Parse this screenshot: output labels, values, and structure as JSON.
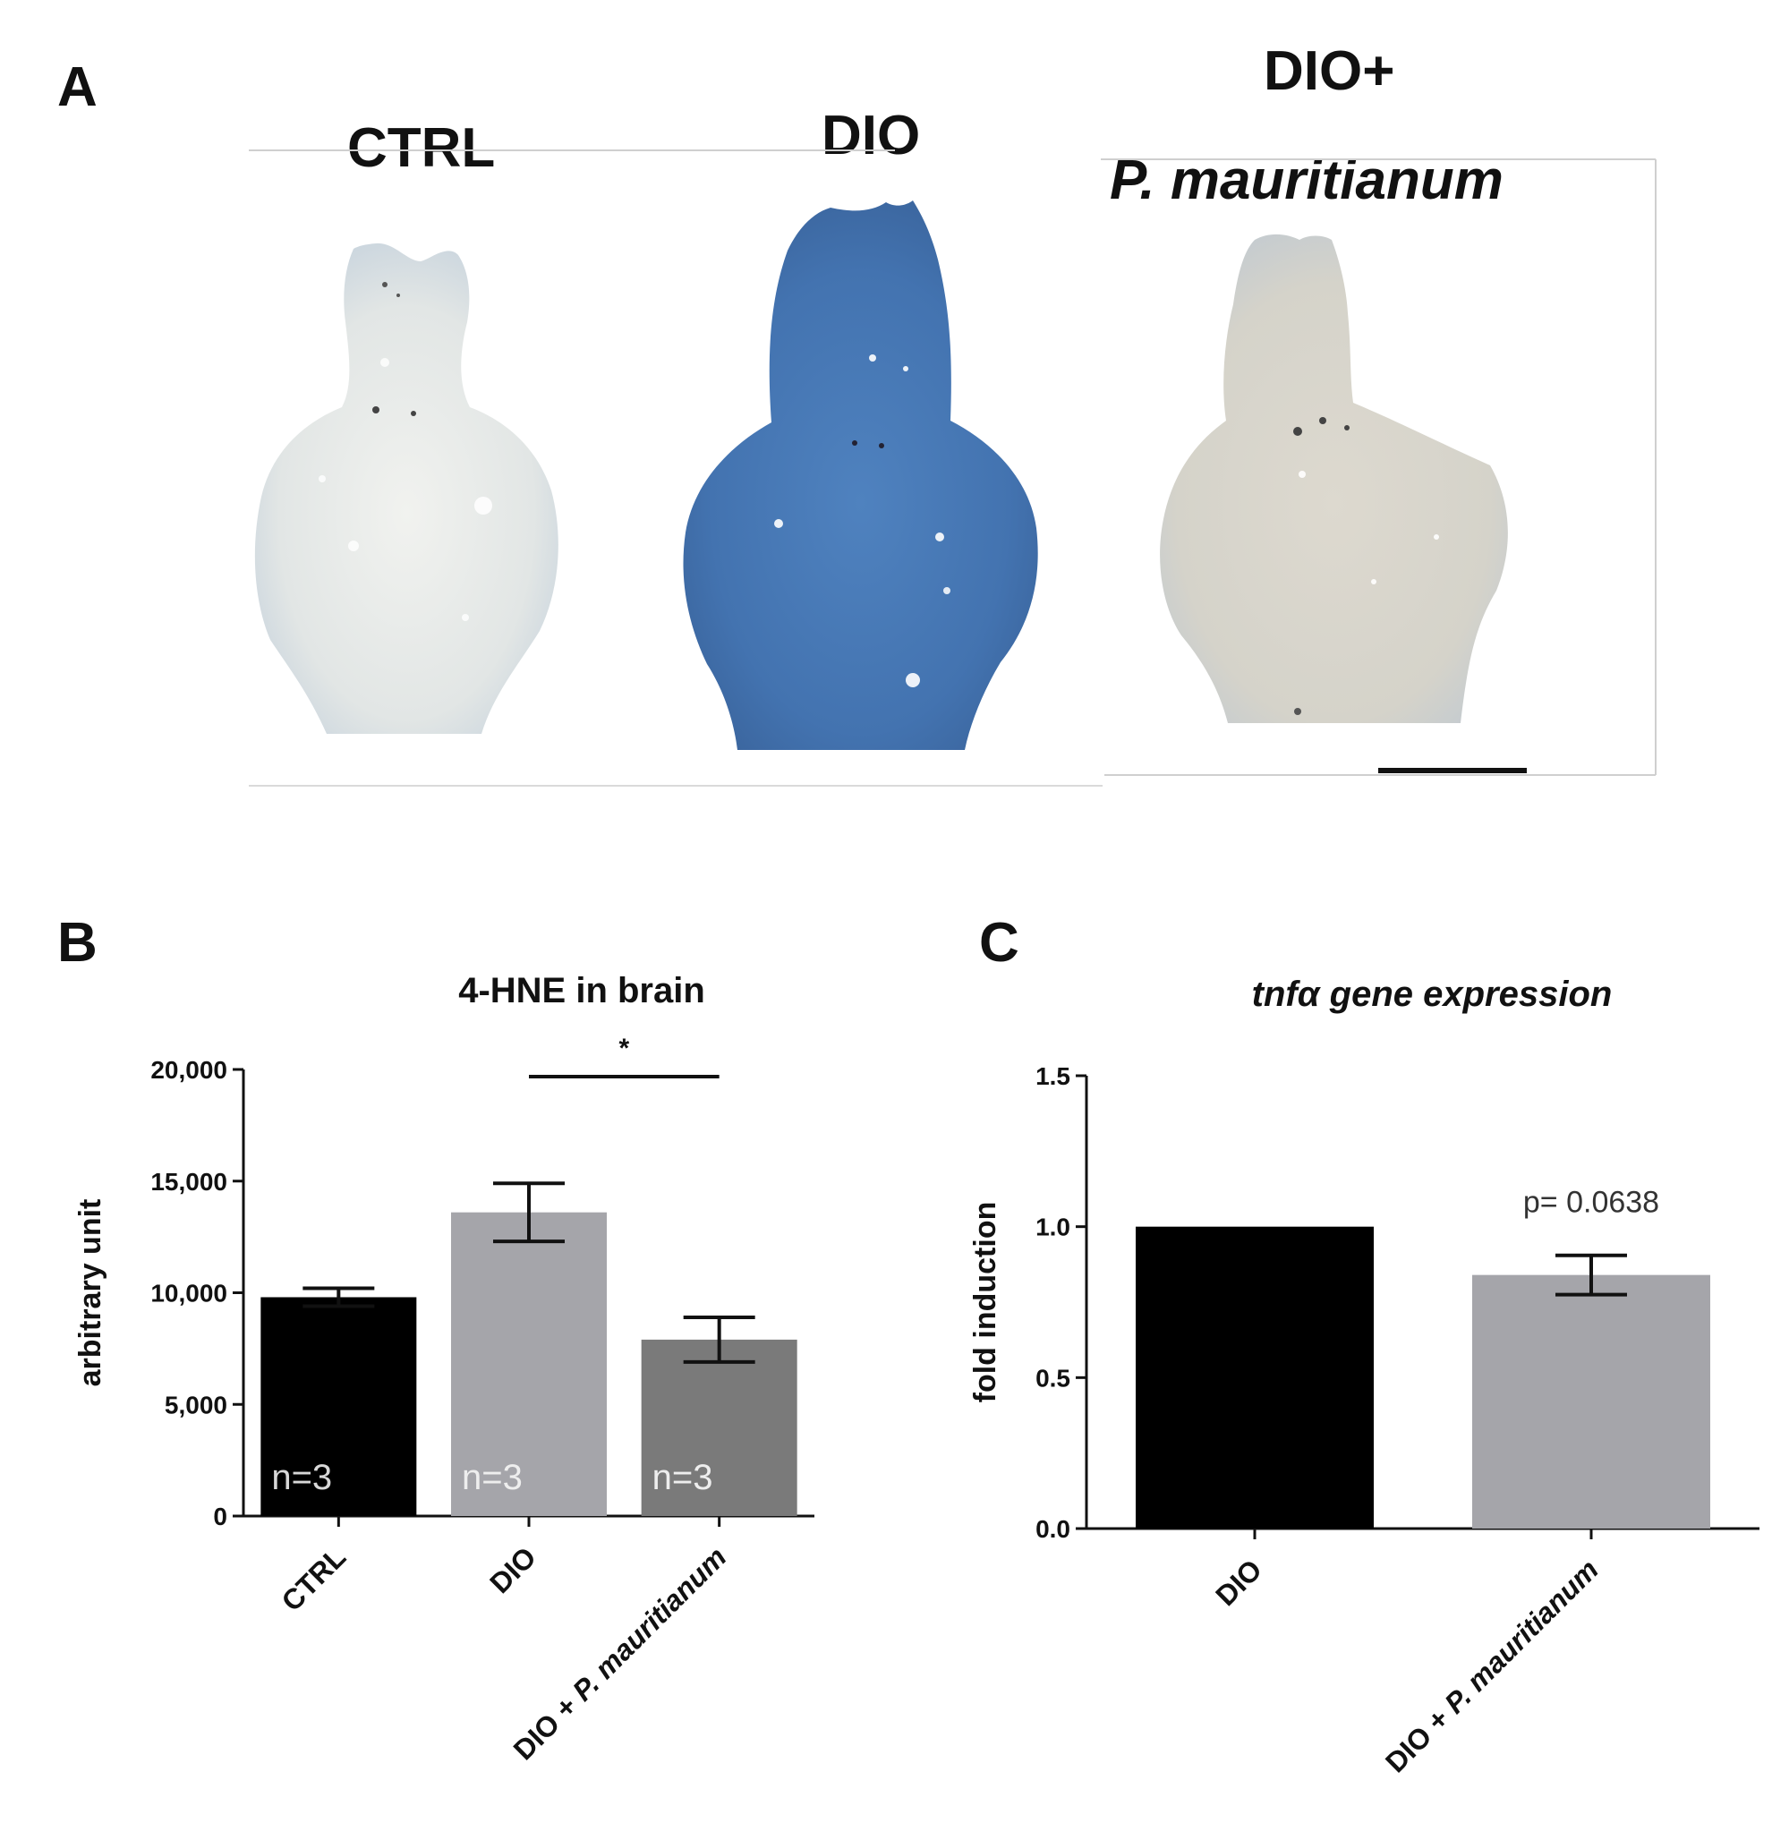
{
  "figure": {
    "panel_a": {
      "letter": "A",
      "label_ctrl": "CTRL",
      "label_dio": "DIO",
      "label_dio_plus": "DIO+",
      "label_pm": "P. mauritianum",
      "brains": [
        {
          "name": "ctrl",
          "fill": "#dfe3e4",
          "tint": "#c5d2dc"
        },
        {
          "name": "dio",
          "fill": "#4f7cb6",
          "tint": "#3f6aa4"
        },
        {
          "name": "dio-pm",
          "fill": "#d8d6cd",
          "tint": "#c8cdd0"
        }
      ]
    },
    "panel_b_letter": "B",
    "panel_c_letter": "C"
  },
  "chart_data": [
    {
      "type": "bar",
      "title": "4-HNE in brain",
      "xlabel": "",
      "ylabel": "arbitrary unit",
      "ylim": [
        0,
        20000
      ],
      "yticks": [
        "0",
        "5,000",
        "10,000",
        "15,000",
        "20,000"
      ],
      "ytick_values": [
        0,
        5000,
        10000,
        15000,
        20000
      ],
      "categories": [
        "CTRL",
        "DIO",
        "DIO + P. mauritianum"
      ],
      "values": [
        9800,
        13600,
        7900
      ],
      "error": [
        400,
        1300,
        1000
      ],
      "bar_labels": [
        "n=3",
        "n=3",
        "n=3"
      ],
      "colors": [
        "#000000",
        "#a5a5aa",
        "#7a7a7a"
      ],
      "significance": {
        "between": [
          1,
          2
        ],
        "label": "*"
      }
    },
    {
      "type": "bar",
      "title": "tnfα gene expression",
      "xlabel": "",
      "ylabel": "fold induction",
      "ylim": [
        0,
        1.5
      ],
      "yticks": [
        "0.0",
        "0.5",
        "1.0",
        "1.5"
      ],
      "ytick_values": [
        0,
        0.5,
        1.0,
        1.5
      ],
      "categories": [
        "DIO",
        "DIO + P. mauritianum"
      ],
      "values": [
        1.0,
        0.84
      ],
      "error": [
        0.0,
        0.065
      ],
      "colors": [
        "#000000",
        "#a5a5aa"
      ],
      "annotation": "p= 0.0638"
    }
  ]
}
